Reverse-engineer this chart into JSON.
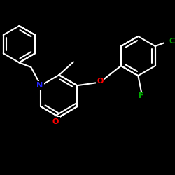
{
  "bg_color": "#000000",
  "bond_color": "#ffffff",
  "N_color": "#2222ff",
  "O_color": "#ff0000",
  "Cl_color": "#00aa00",
  "F_color": "#00aa00",
  "bond_width": 1.5,
  "figsize": [
    2.5,
    2.5
  ],
  "dpi": 100,
  "xlim": [
    0,
    250
  ],
  "ylim": [
    0,
    250
  ]
}
